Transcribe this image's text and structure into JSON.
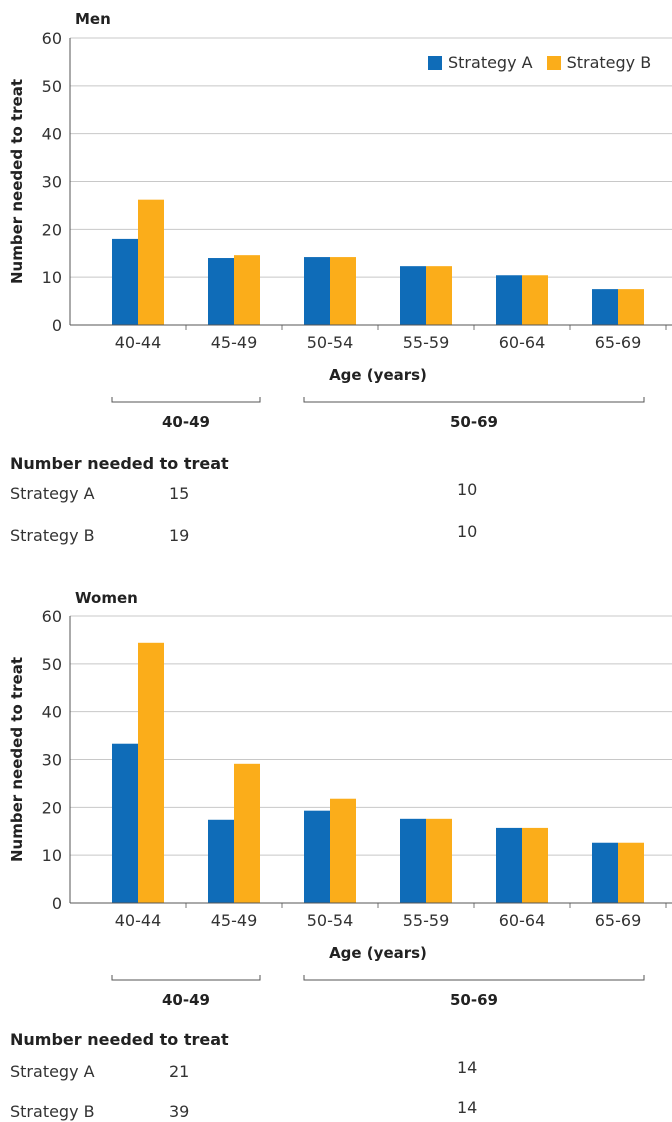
{
  "legend": [
    {
      "name": "Strategy A",
      "color": "#0f6cb8"
    },
    {
      "name": "Strategy B",
      "color": "#fbad1a"
    }
  ],
  "chart_data": [
    {
      "type": "bar",
      "title": "Men",
      "xlabel": "Age (years)",
      "ylabel": "Number needed to treat",
      "categories": [
        "40-44",
        "45-49",
        "50-54",
        "55-59",
        "60-64",
        "65-69"
      ],
      "ylim": [
        0,
        60
      ],
      "yticks": [
        "0",
        "10",
        "20",
        "30",
        "40",
        "50",
        "60"
      ],
      "series": [
        {
          "name": "Strategy A",
          "color": "#0f6cb8",
          "values": [
            18,
            14,
            14.2,
            12.3,
            10.4,
            7.5
          ]
        },
        {
          "name": "Strategy B",
          "color": "#fbad1a",
          "values": [
            26.2,
            14.6,
            14.2,
            12.3,
            10.4,
            7.5
          ]
        }
      ],
      "grid": true,
      "legend_position": "top-right",
      "groups": [
        {
          "label": "40-49",
          "from": "40-44",
          "to": "45-49"
        },
        {
          "label": "50-69",
          "from": "50-54",
          "to": "65-69"
        }
      ]
    },
    {
      "type": "bar",
      "title": "Women",
      "xlabel": "Age (years)",
      "ylabel": "Number needed to treat",
      "categories": [
        "40-44",
        "45-49",
        "50-54",
        "55-59",
        "60-64",
        "65-69"
      ],
      "ylim": [
        0,
        60
      ],
      "yticks": [
        "0",
        "10",
        "20",
        "30",
        "40",
        "50",
        "60"
      ],
      "series": [
        {
          "name": "Strategy A",
          "color": "#0f6cb8",
          "values": [
            33.3,
            17.4,
            19.3,
            17.6,
            15.7,
            12.6
          ]
        },
        {
          "name": "Strategy B",
          "color": "#fbad1a",
          "values": [
            54.4,
            29.1,
            21.8,
            17.6,
            15.7,
            12.6
          ]
        }
      ],
      "grid": true,
      "groups": [
        {
          "label": "40-49",
          "from": "40-44",
          "to": "45-49"
        },
        {
          "label": "50-69",
          "from": "50-54",
          "to": "65-69"
        }
      ]
    }
  ],
  "tables": [
    {
      "heading": "Number needed to treat",
      "rows": [
        {
          "label": "Strategy A",
          "group_40_49": "15",
          "group_50_69": "10"
        },
        {
          "label": "Strategy B",
          "group_40_49": "19",
          "group_50_69": "10"
        }
      ]
    },
    {
      "heading": "Number needed to treat",
      "rows": [
        {
          "label": "Strategy A",
          "group_40_49": "21",
          "group_50_69": "14"
        },
        {
          "label": "Strategy B",
          "group_40_49": "39",
          "group_50_69": "14"
        }
      ]
    }
  ]
}
